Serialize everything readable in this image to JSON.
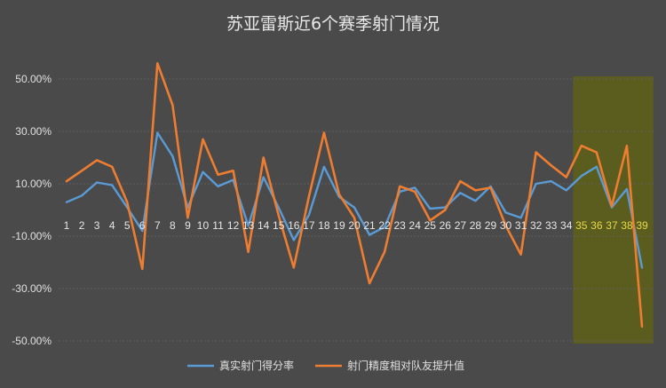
{
  "chart_data": {
    "type": "line",
    "title": "苏亚雷斯近6个赛季射门情况",
    "ytick_labels": [
      "50.00%",
      "30.00%",
      "10.00%",
      "-10.00%",
      "-30.00%",
      "-50.00%"
    ],
    "ylim": [
      -50,
      50
    ],
    "x": [
      1,
      2,
      3,
      4,
      5,
      6,
      7,
      8,
      9,
      10,
      11,
      12,
      13,
      14,
      15,
      16,
      17,
      18,
      19,
      20,
      21,
      22,
      23,
      24,
      25,
      26,
      27,
      28,
      29,
      30,
      31,
      32,
      33,
      34,
      35,
      36,
      37,
      38,
      39
    ],
    "x_labels": [
      "1",
      "2",
      "3",
      "4",
      "5",
      "6",
      "7",
      "8",
      "9",
      "10",
      "11",
      "12",
      "13",
      "14",
      "15",
      "16",
      "17",
      "18",
      "19",
      "20",
      "21",
      "22",
      "23",
      "24",
      "25",
      "26",
      "27",
      "28",
      "29",
      "30",
      "31",
      "32",
      "33",
      "34",
      "35",
      "36",
      "37",
      "38",
      "39"
    ],
    "highlight_x": [
      35,
      36,
      37,
      38,
      39
    ],
    "highlight_color": "#5c5f1a",
    "series": [
      {
        "name": "真实射门得分率",
        "color": "#5b9bd5",
        "values": [
          3,
          5.5,
          10.5,
          9.5,
          1,
          -8,
          29.5,
          20.5,
          1,
          14.5,
          9,
          11.5,
          -6,
          12.5,
          1,
          -11.5,
          -2,
          16.5,
          5,
          1,
          -9.5,
          -6.5,
          7,
          8.5,
          0.5,
          1,
          6.5,
          3.5,
          9,
          -1,
          -3,
          10,
          11,
          7.5,
          13,
          16.5,
          1,
          8,
          -22
        ]
      },
      {
        "name": "射门精度相对队友提升值",
        "color": "#ed7d31",
        "values": [
          11,
          15,
          19,
          16.5,
          3,
          -22.5,
          56,
          40,
          -3,
          27,
          13.5,
          15,
          -16,
          20,
          -2,
          -22,
          5,
          29.5,
          6,
          -3,
          -28,
          -16,
          9,
          7,
          -4,
          0,
          11,
          7.5,
          8.5,
          -6,
          -17,
          22,
          17,
          12.5,
          24.5,
          22,
          1.5,
          24.5,
          -44.5
        ]
      }
    ],
    "legend_position": "bottom",
    "grid": true
  }
}
